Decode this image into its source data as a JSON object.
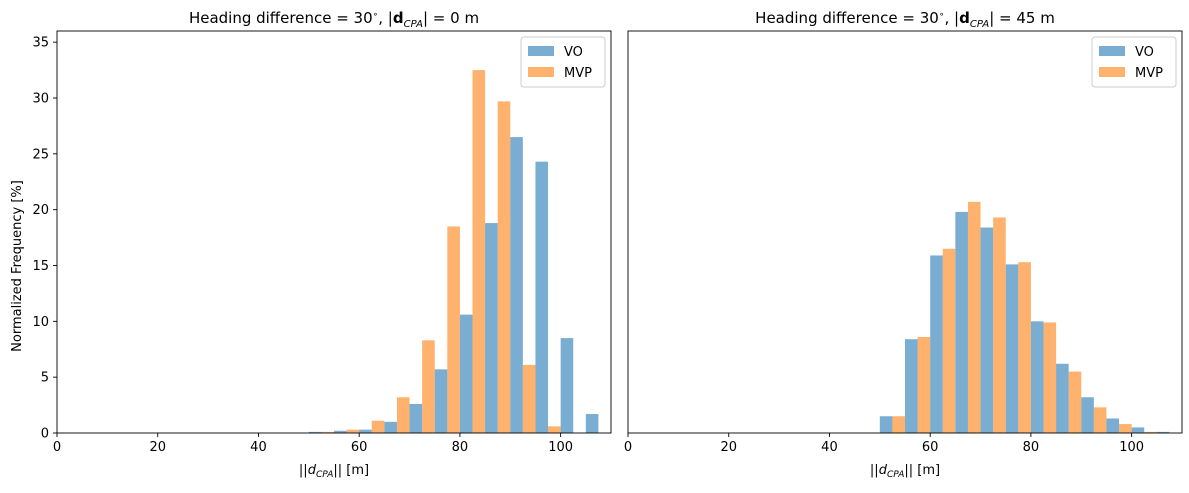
{
  "figure": {
    "ylabel": "Normalized Frequency [%]"
  },
  "chart_data": [
    {
      "type": "bar",
      "title": {
        "prefix": "Heading difference = 30",
        "deg": "∘",
        "mid": ", |",
        "bold": "d",
        "sub": "CPA",
        "suffix": "| = 0 m"
      },
      "xlabel": {
        "pre": "||",
        "var": "d",
        "sub": "CPA",
        "post": "|| [m]"
      },
      "ylabel": "Normalized Frequency [%]",
      "xlim": [
        0,
        110
      ],
      "ylim": [
        0,
        36
      ],
      "xticks": [
        "0",
        "20",
        "40",
        "60",
        "80",
        "100"
      ],
      "yticks": [
        "0",
        "5",
        "10",
        "15",
        "20",
        "25",
        "30",
        "35"
      ],
      "legend": "top-right",
      "grid": false,
      "bin_starts": [
        50,
        55,
        60,
        65,
        70,
        75,
        80,
        85,
        90,
        95,
        100,
        105
      ],
      "bin_width": 5,
      "series": [
        {
          "name": "VO",
          "color": "#1f77b4",
          "values": [
            0.1,
            0.2,
            0.3,
            1.0,
            2.6,
            5.7,
            10.6,
            18.8,
            26.5,
            24.3,
            8.5,
            1.7
          ]
        },
        {
          "name": "MVP",
          "color": "#ff7f0e",
          "values": [
            0.1,
            0.3,
            1.1,
            3.2,
            8.3,
            18.5,
            32.5,
            29.7,
            6.1,
            0.6,
            0,
            0
          ]
        }
      ]
    },
    {
      "type": "bar",
      "title": {
        "prefix": "Heading difference = 30",
        "deg": "∘",
        "mid": ", |",
        "bold": "d",
        "sub": "CPA",
        "suffix": "| = 45 m"
      },
      "xlabel": {
        "pre": "||",
        "var": "d",
        "sub": "CPA",
        "post": "|| [m]"
      },
      "xlim": [
        0,
        110
      ],
      "ylim": [
        0,
        36
      ],
      "xticks": [
        "0",
        "20",
        "40",
        "60",
        "80",
        "100"
      ],
      "legend": "top-right",
      "grid": false,
      "bin_starts": [
        50,
        55,
        60,
        65,
        70,
        75,
        80,
        85,
        90,
        95,
        100,
        105
      ],
      "bin_width": 5,
      "series": [
        {
          "name": "VO",
          "color": "#1f77b4",
          "values": [
            1.5,
            8.4,
            15.9,
            19.8,
            18.4,
            15.1,
            10.0,
            6.2,
            3.2,
            1.3,
            0.5,
            0.1
          ]
        },
        {
          "name": "MVP",
          "color": "#ff7f0e",
          "values": [
            1.5,
            8.6,
            16.5,
            20.7,
            19.3,
            15.3,
            9.9,
            5.5,
            2.3,
            0.8,
            0.1,
            0
          ]
        }
      ]
    }
  ]
}
